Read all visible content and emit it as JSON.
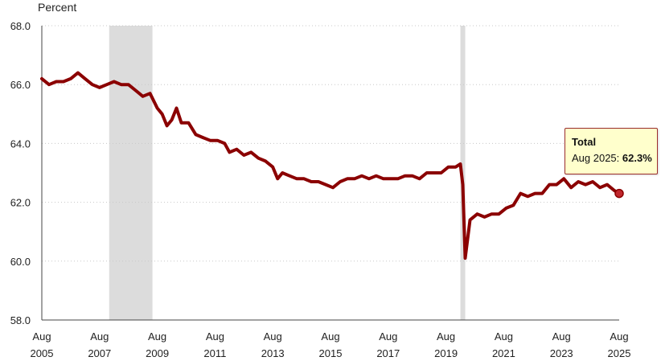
{
  "colors": {
    "line": "#8b0000",
    "recession": "#dcdcdc",
    "grid": "#c8c8c8",
    "tooltip_bg": "#ffffcc",
    "tooltip_border": "#9b2d2d"
  },
  "tooltip": {
    "title": "Total",
    "label": "Aug 2025: ",
    "value": "62.3%"
  },
  "chart_data": {
    "type": "line",
    "ylabel": "Percent",
    "ylim": [
      58.0,
      68.0
    ],
    "y_ticks": [
      "58.0",
      "60.0",
      "62.0",
      "64.0",
      "66.0",
      "68.0"
    ],
    "x_ticks": [
      {
        "month": "Aug",
        "year": "2005"
      },
      {
        "month": "Aug",
        "year": "2007"
      },
      {
        "month": "Aug",
        "year": "2009"
      },
      {
        "month": "Aug",
        "year": "2011"
      },
      {
        "month": "Aug",
        "year": "2013"
      },
      {
        "month": "Aug",
        "year": "2015"
      },
      {
        "month": "Aug",
        "year": "2017"
      },
      {
        "month": "Aug",
        "year": "2019"
      },
      {
        "month": "Aug",
        "year": "2021"
      },
      {
        "month": "Aug",
        "year": "2023"
      },
      {
        "month": "Aug",
        "year": "2025"
      }
    ],
    "xlim": [
      "2005-08",
      "2025-08"
    ],
    "grid": true,
    "recessions": [
      {
        "start": "2007-12",
        "end": "2009-06"
      },
      {
        "start": "2020-02",
        "end": "2020-04"
      }
    ],
    "series": [
      {
        "name": "Total",
        "points": [
          [
            "2005-08",
            66.2
          ],
          [
            "2005-11",
            66.0
          ],
          [
            "2006-02",
            66.1
          ],
          [
            "2006-05",
            66.1
          ],
          [
            "2006-08",
            66.2
          ],
          [
            "2006-11",
            66.4
          ],
          [
            "2007-02",
            66.2
          ],
          [
            "2007-05",
            66.0
          ],
          [
            "2007-08",
            65.9
          ],
          [
            "2007-11",
            66.0
          ],
          [
            "2008-02",
            66.1
          ],
          [
            "2008-05",
            66.0
          ],
          [
            "2008-08",
            66.0
          ],
          [
            "2008-11",
            65.8
          ],
          [
            "2009-02",
            65.6
          ],
          [
            "2009-05",
            65.7
          ],
          [
            "2009-08",
            65.2
          ],
          [
            "2009-10",
            65.0
          ],
          [
            "2009-12",
            64.6
          ],
          [
            "2010-02",
            64.8
          ],
          [
            "2010-04",
            65.2
          ],
          [
            "2010-06",
            64.7
          ],
          [
            "2010-09",
            64.7
          ],
          [
            "2010-12",
            64.3
          ],
          [
            "2011-03",
            64.2
          ],
          [
            "2011-06",
            64.1
          ],
          [
            "2011-09",
            64.1
          ],
          [
            "2011-12",
            64.0
          ],
          [
            "2012-02",
            63.7
          ],
          [
            "2012-05",
            63.8
          ],
          [
            "2012-08",
            63.6
          ],
          [
            "2012-11",
            63.7
          ],
          [
            "2013-02",
            63.5
          ],
          [
            "2013-05",
            63.4
          ],
          [
            "2013-08",
            63.2
          ],
          [
            "2013-10",
            62.8
          ],
          [
            "2013-12",
            63.0
          ],
          [
            "2014-03",
            62.9
          ],
          [
            "2014-06",
            62.8
          ],
          [
            "2014-09",
            62.8
          ],
          [
            "2014-12",
            62.7
          ],
          [
            "2015-03",
            62.7
          ],
          [
            "2015-06",
            62.6
          ],
          [
            "2015-09",
            62.5
          ],
          [
            "2015-12",
            62.7
          ],
          [
            "2016-03",
            62.8
          ],
          [
            "2016-06",
            62.8
          ],
          [
            "2016-09",
            62.9
          ],
          [
            "2016-12",
            62.8
          ],
          [
            "2017-03",
            62.9
          ],
          [
            "2017-06",
            62.8
          ],
          [
            "2017-09",
            62.8
          ],
          [
            "2017-12",
            62.8
          ],
          [
            "2018-03",
            62.9
          ],
          [
            "2018-06",
            62.9
          ],
          [
            "2018-09",
            62.8
          ],
          [
            "2018-12",
            63.0
          ],
          [
            "2019-03",
            63.0
          ],
          [
            "2019-06",
            63.0
          ],
          [
            "2019-09",
            63.2
          ],
          [
            "2019-12",
            63.2
          ],
          [
            "2020-02",
            63.3
          ],
          [
            "2020-03",
            62.6
          ],
          [
            "2020-04",
            60.1
          ],
          [
            "2020-06",
            61.4
          ],
          [
            "2020-09",
            61.6
          ],
          [
            "2020-12",
            61.5
          ],
          [
            "2021-03",
            61.6
          ],
          [
            "2021-06",
            61.6
          ],
          [
            "2021-09",
            61.8
          ],
          [
            "2021-12",
            61.9
          ],
          [
            "2022-03",
            62.3
          ],
          [
            "2022-06",
            62.2
          ],
          [
            "2022-09",
            62.3
          ],
          [
            "2022-12",
            62.3
          ],
          [
            "2023-03",
            62.6
          ],
          [
            "2023-06",
            62.6
          ],
          [
            "2023-09",
            62.8
          ],
          [
            "2023-12",
            62.5
          ],
          [
            "2024-03",
            62.7
          ],
          [
            "2024-06",
            62.6
          ],
          [
            "2024-09",
            62.7
          ],
          [
            "2024-12",
            62.5
          ],
          [
            "2025-03",
            62.6
          ],
          [
            "2025-06",
            62.4
          ],
          [
            "2025-08",
            62.3
          ]
        ]
      }
    ]
  }
}
